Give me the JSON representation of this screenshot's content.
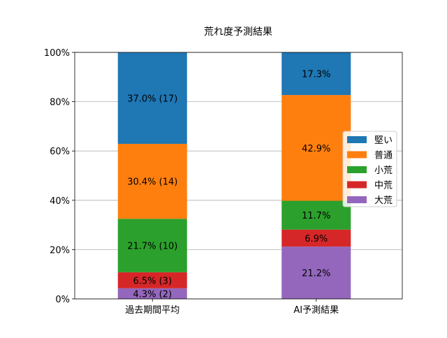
{
  "chart_data": {
    "type": "bar",
    "stacked": true,
    "title": "荒れ度予測結果",
    "xlabel": "",
    "ylabel": "",
    "ylim": [
      0,
      100
    ],
    "yticks": [
      "0%",
      "20%",
      "40%",
      "60%",
      "80%",
      "100%"
    ],
    "grid": "y",
    "legend_position": "center-right",
    "categories": [
      "過去期間平均",
      "AI予測結果"
    ],
    "series": [
      {
        "name": "大荒",
        "color": "#9467bd",
        "values": [
          4.3,
          21.2
        ],
        "labels": [
          "4.3% (2)",
          "21.2%"
        ]
      },
      {
        "name": "中荒",
        "color": "#d62728",
        "values": [
          6.5,
          6.9
        ],
        "labels": [
          "6.5% (3)",
          "6.9%"
        ]
      },
      {
        "name": "小荒",
        "color": "#2ca02c",
        "values": [
          21.7,
          11.7
        ],
        "labels": [
          "21.7% (10)",
          "11.7%"
        ]
      },
      {
        "name": "普通",
        "color": "#ff7f0e",
        "values": [
          30.4,
          42.9
        ],
        "labels": [
          "30.4% (14)",
          "42.9%"
        ]
      },
      {
        "name": "堅い",
        "color": "#1f77b4",
        "values": [
          37.0,
          17.3
        ],
        "labels": [
          "37.0% (17)",
          "17.3%"
        ]
      }
    ],
    "legend_order": [
      "堅い",
      "普通",
      "小荒",
      "中荒",
      "大荒"
    ]
  }
}
